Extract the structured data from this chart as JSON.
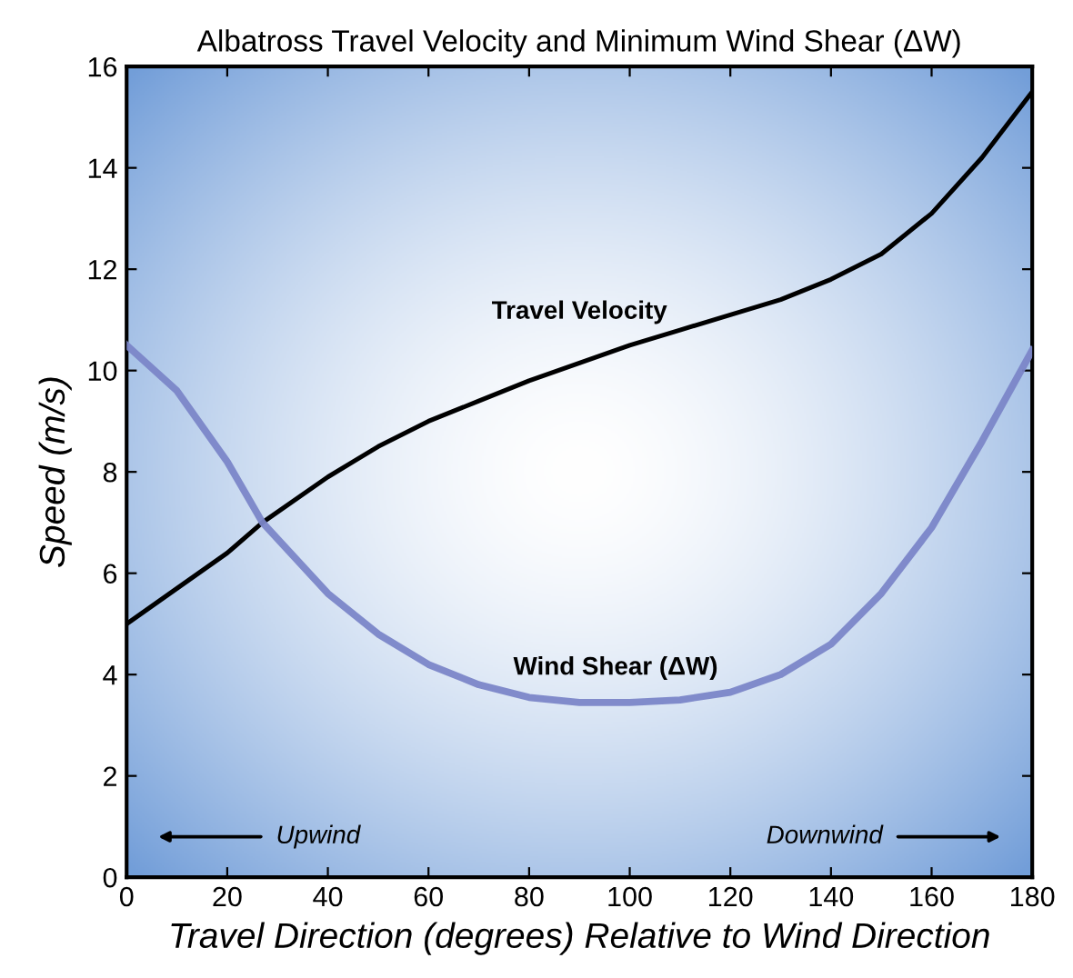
{
  "chart_data": {
    "type": "line",
    "title": "Albatross Travel Velocity and Minimum Wind Shear (ΔW)",
    "xlabel": "Travel Direction (degrees) Relative to Wind Direction",
    "ylabel": "Speed (m/s)",
    "series": [
      {
        "name": "Travel Velocity",
        "color": "#000000",
        "x": [
          0,
          10,
          20,
          27,
          40,
          50,
          60,
          70,
          80,
          90,
          100,
          110,
          120,
          130,
          140,
          150,
          160,
          170,
          180
        ],
        "values": [
          5.0,
          5.7,
          6.4,
          7.0,
          7.9,
          8.5,
          9.0,
          9.4,
          9.8,
          10.15,
          10.5,
          10.8,
          11.1,
          11.4,
          11.8,
          12.3,
          13.1,
          14.2,
          15.5
        ]
      },
      {
        "name": "Wind Shear (ΔW)",
        "color": "#7b86c8",
        "x": [
          0,
          10,
          20,
          27,
          40,
          50,
          60,
          70,
          80,
          90,
          100,
          110,
          120,
          130,
          140,
          150,
          160,
          170,
          180
        ],
        "values": [
          10.5,
          9.6,
          8.2,
          7.0,
          5.6,
          4.8,
          4.2,
          3.8,
          3.55,
          3.45,
          3.45,
          3.5,
          3.65,
          4.0,
          4.6,
          5.6,
          6.9,
          8.6,
          10.4
        ]
      }
    ],
    "annotations": [
      "Upwind",
      "Downwind"
    ],
    "xlim": [
      0,
      180
    ],
    "xticks": [
      0,
      20,
      40,
      60,
      80,
      100,
      120,
      140,
      160,
      180
    ],
    "ylim": [
      0,
      16
    ],
    "yticks": [
      0,
      2,
      4,
      6,
      8,
      10,
      12,
      14,
      16
    ],
    "grid": false,
    "legend": false,
    "marker": "none",
    "line_style": "solid"
  }
}
